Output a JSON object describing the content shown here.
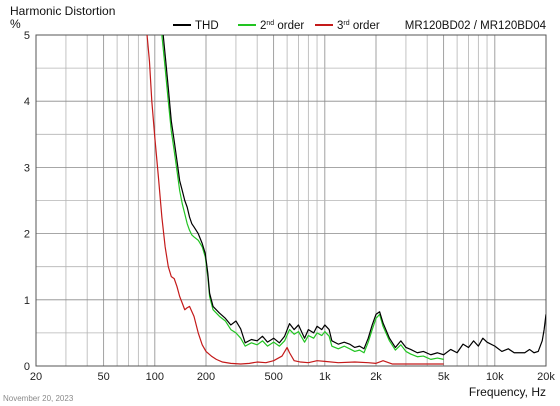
{
  "chart_data": {
    "type": "line",
    "title": "Harmonic Distortion",
    "ylabel": "%",
    "xlabel": "Frequency, Hz",
    "model": "MR120BD02 / MR120BD04",
    "date": "November 20, 2023",
    "x_scale": "log",
    "xlim": [
      20,
      20000
    ],
    "ylim": [
      0,
      5
    ],
    "grid": true,
    "legend_position": "top",
    "x_ticks": [
      {
        "value": 20,
        "label": "20"
      },
      {
        "value": 50,
        "label": "50"
      },
      {
        "value": 100,
        "label": "100"
      },
      {
        "value": 200,
        "label": "200"
      },
      {
        "value": 500,
        "label": "500"
      },
      {
        "value": 1000,
        "label": "1k"
      },
      {
        "value": 2000,
        "label": "2k"
      },
      {
        "value": 5000,
        "label": "5k"
      },
      {
        "value": 10000,
        "label": "10k"
      },
      {
        "value": 20000,
        "label": "20k"
      }
    ],
    "y_ticks": [
      {
        "value": 0,
        "label": "0"
      },
      {
        "value": 1,
        "label": "1"
      },
      {
        "value": 2,
        "label": "2"
      },
      {
        "value": 3,
        "label": "3"
      },
      {
        "value": 4,
        "label": "4"
      },
      {
        "value": 5,
        "label": "5"
      }
    ],
    "series": [
      {
        "name": "THD",
        "color": "#000000",
        "points": [
          [
            112,
            5.0
          ],
          [
            116,
            4.6
          ],
          [
            120,
            4.2
          ],
          [
            125,
            3.7
          ],
          [
            130,
            3.4
          ],
          [
            135,
            3.1
          ],
          [
            140,
            2.8
          ],
          [
            145,
            2.65
          ],
          [
            150,
            2.5
          ],
          [
            155,
            2.4
          ],
          [
            160,
            2.25
          ],
          [
            165,
            2.15
          ],
          [
            170,
            2.1
          ],
          [
            180,
            2.0
          ],
          [
            190,
            1.85
          ],
          [
            198,
            1.7
          ],
          [
            205,
            1.4
          ],
          [
            210,
            1.1
          ],
          [
            220,
            0.9
          ],
          [
            240,
            0.8
          ],
          [
            260,
            0.72
          ],
          [
            280,
            0.62
          ],
          [
            300,
            0.68
          ],
          [
            320,
            0.56
          ],
          [
            340,
            0.35
          ],
          [
            370,
            0.4
          ],
          [
            400,
            0.38
          ],
          [
            430,
            0.45
          ],
          [
            460,
            0.36
          ],
          [
            500,
            0.42
          ],
          [
            540,
            0.35
          ],
          [
            580,
            0.45
          ],
          [
            620,
            0.64
          ],
          [
            660,
            0.55
          ],
          [
            700,
            0.62
          ],
          [
            760,
            0.42
          ],
          [
            800,
            0.55
          ],
          [
            860,
            0.5
          ],
          [
            900,
            0.6
          ],
          [
            960,
            0.55
          ],
          [
            1000,
            0.62
          ],
          [
            1060,
            0.55
          ],
          [
            1100,
            0.38
          ],
          [
            1200,
            0.33
          ],
          [
            1300,
            0.36
          ],
          [
            1400,
            0.33
          ],
          [
            1500,
            0.28
          ],
          [
            1600,
            0.3
          ],
          [
            1700,
            0.26
          ],
          [
            1800,
            0.42
          ],
          [
            1900,
            0.62
          ],
          [
            2000,
            0.78
          ],
          [
            2100,
            0.82
          ],
          [
            2200,
            0.65
          ],
          [
            2400,
            0.42
          ],
          [
            2600,
            0.28
          ],
          [
            2800,
            0.38
          ],
          [
            3000,
            0.28
          ],
          [
            3200,
            0.25
          ],
          [
            3500,
            0.2
          ],
          [
            3800,
            0.22
          ],
          [
            4200,
            0.17
          ],
          [
            4600,
            0.2
          ],
          [
            5000,
            0.17
          ],
          [
            5500,
            0.25
          ],
          [
            6000,
            0.2
          ],
          [
            6500,
            0.33
          ],
          [
            7000,
            0.28
          ],
          [
            7500,
            0.38
          ],
          [
            8000,
            0.3
          ],
          [
            8500,
            0.42
          ],
          [
            9000,
            0.36
          ],
          [
            10000,
            0.3
          ],
          [
            11000,
            0.22
          ],
          [
            12000,
            0.26
          ],
          [
            13000,
            0.2
          ],
          [
            15000,
            0.2
          ],
          [
            16000,
            0.25
          ],
          [
            17000,
            0.2
          ],
          [
            18000,
            0.22
          ],
          [
            19000,
            0.38
          ],
          [
            19500,
            0.55
          ],
          [
            20000,
            0.78
          ]
        ]
      },
      {
        "name": "2nd order",
        "color": "#22c422",
        "points": [
          [
            110,
            5.0
          ],
          [
            114,
            4.6
          ],
          [
            120,
            4.0
          ],
          [
            125,
            3.55
          ],
          [
            130,
            3.25
          ],
          [
            135,
            2.95
          ],
          [
            140,
            2.65
          ],
          [
            145,
            2.45
          ],
          [
            150,
            2.3
          ],
          [
            155,
            2.15
          ],
          [
            160,
            2.05
          ],
          [
            165,
            1.98
          ],
          [
            170,
            1.95
          ],
          [
            180,
            1.9
          ],
          [
            190,
            1.8
          ],
          [
            198,
            1.65
          ],
          [
            205,
            1.35
          ],
          [
            210,
            1.05
          ],
          [
            220,
            0.85
          ],
          [
            240,
            0.75
          ],
          [
            260,
            0.68
          ],
          [
            280,
            0.55
          ],
          [
            300,
            0.5
          ],
          [
            320,
            0.42
          ],
          [
            340,
            0.3
          ],
          [
            370,
            0.35
          ],
          [
            400,
            0.32
          ],
          [
            430,
            0.38
          ],
          [
            460,
            0.3
          ],
          [
            500,
            0.36
          ],
          [
            540,
            0.3
          ],
          [
            580,
            0.38
          ],
          [
            620,
            0.55
          ],
          [
            660,
            0.48
          ],
          [
            700,
            0.52
          ],
          [
            760,
            0.36
          ],
          [
            800,
            0.46
          ],
          [
            860,
            0.42
          ],
          [
            900,
            0.5
          ],
          [
            960,
            0.46
          ],
          [
            1000,
            0.52
          ],
          [
            1060,
            0.45
          ],
          [
            1100,
            0.3
          ],
          [
            1200,
            0.26
          ],
          [
            1300,
            0.3
          ],
          [
            1400,
            0.26
          ],
          [
            1500,
            0.22
          ],
          [
            1600,
            0.24
          ],
          [
            1700,
            0.2
          ],
          [
            1800,
            0.36
          ],
          [
            1900,
            0.55
          ],
          [
            2000,
            0.72
          ],
          [
            2100,
            0.78
          ],
          [
            2200,
            0.6
          ],
          [
            2400,
            0.38
          ],
          [
            2600,
            0.24
          ],
          [
            2800,
            0.32
          ],
          [
            3000,
            0.22
          ],
          [
            3200,
            0.18
          ],
          [
            3500,
            0.14
          ],
          [
            3800,
            0.15
          ],
          [
            4200,
            0.1
          ],
          [
            4600,
            0.12
          ],
          [
            5000,
            0.1
          ]
        ]
      },
      {
        "name": "3rd order",
        "color": "#c41a1a",
        "points": [
          [
            90,
            5.0
          ],
          [
            93,
            4.6
          ],
          [
            96,
            4.0
          ],
          [
            100,
            3.45
          ],
          [
            105,
            2.85
          ],
          [
            110,
            2.25
          ],
          [
            115,
            1.8
          ],
          [
            120,
            1.5
          ],
          [
            125,
            1.35
          ],
          [
            130,
            1.32
          ],
          [
            135,
            1.2
          ],
          [
            140,
            1.05
          ],
          [
            145,
            0.95
          ],
          [
            150,
            0.85
          ],
          [
            155,
            0.88
          ],
          [
            160,
            0.9
          ],
          [
            170,
            0.75
          ],
          [
            180,
            0.5
          ],
          [
            190,
            0.32
          ],
          [
            200,
            0.22
          ],
          [
            215,
            0.15
          ],
          [
            230,
            0.1
          ],
          [
            250,
            0.06
          ],
          [
            280,
            0.04
          ],
          [
            320,
            0.03
          ],
          [
            360,
            0.04
          ],
          [
            400,
            0.06
          ],
          [
            450,
            0.05
          ],
          [
            500,
            0.08
          ],
          [
            560,
            0.15
          ],
          [
            600,
            0.28
          ],
          [
            620,
            0.2
          ],
          [
            660,
            0.08
          ],
          [
            720,
            0.06
          ],
          [
            800,
            0.05
          ],
          [
            900,
            0.08
          ],
          [
            1000,
            0.07
          ],
          [
            1200,
            0.05
          ],
          [
            1500,
            0.06
          ],
          [
            1800,
            0.05
          ],
          [
            2000,
            0.04
          ],
          [
            2200,
            0.08
          ],
          [
            2500,
            0.03
          ],
          [
            3000,
            0.03
          ],
          [
            4000,
            0.03
          ],
          [
            5000,
            0.03
          ]
        ]
      }
    ]
  }
}
